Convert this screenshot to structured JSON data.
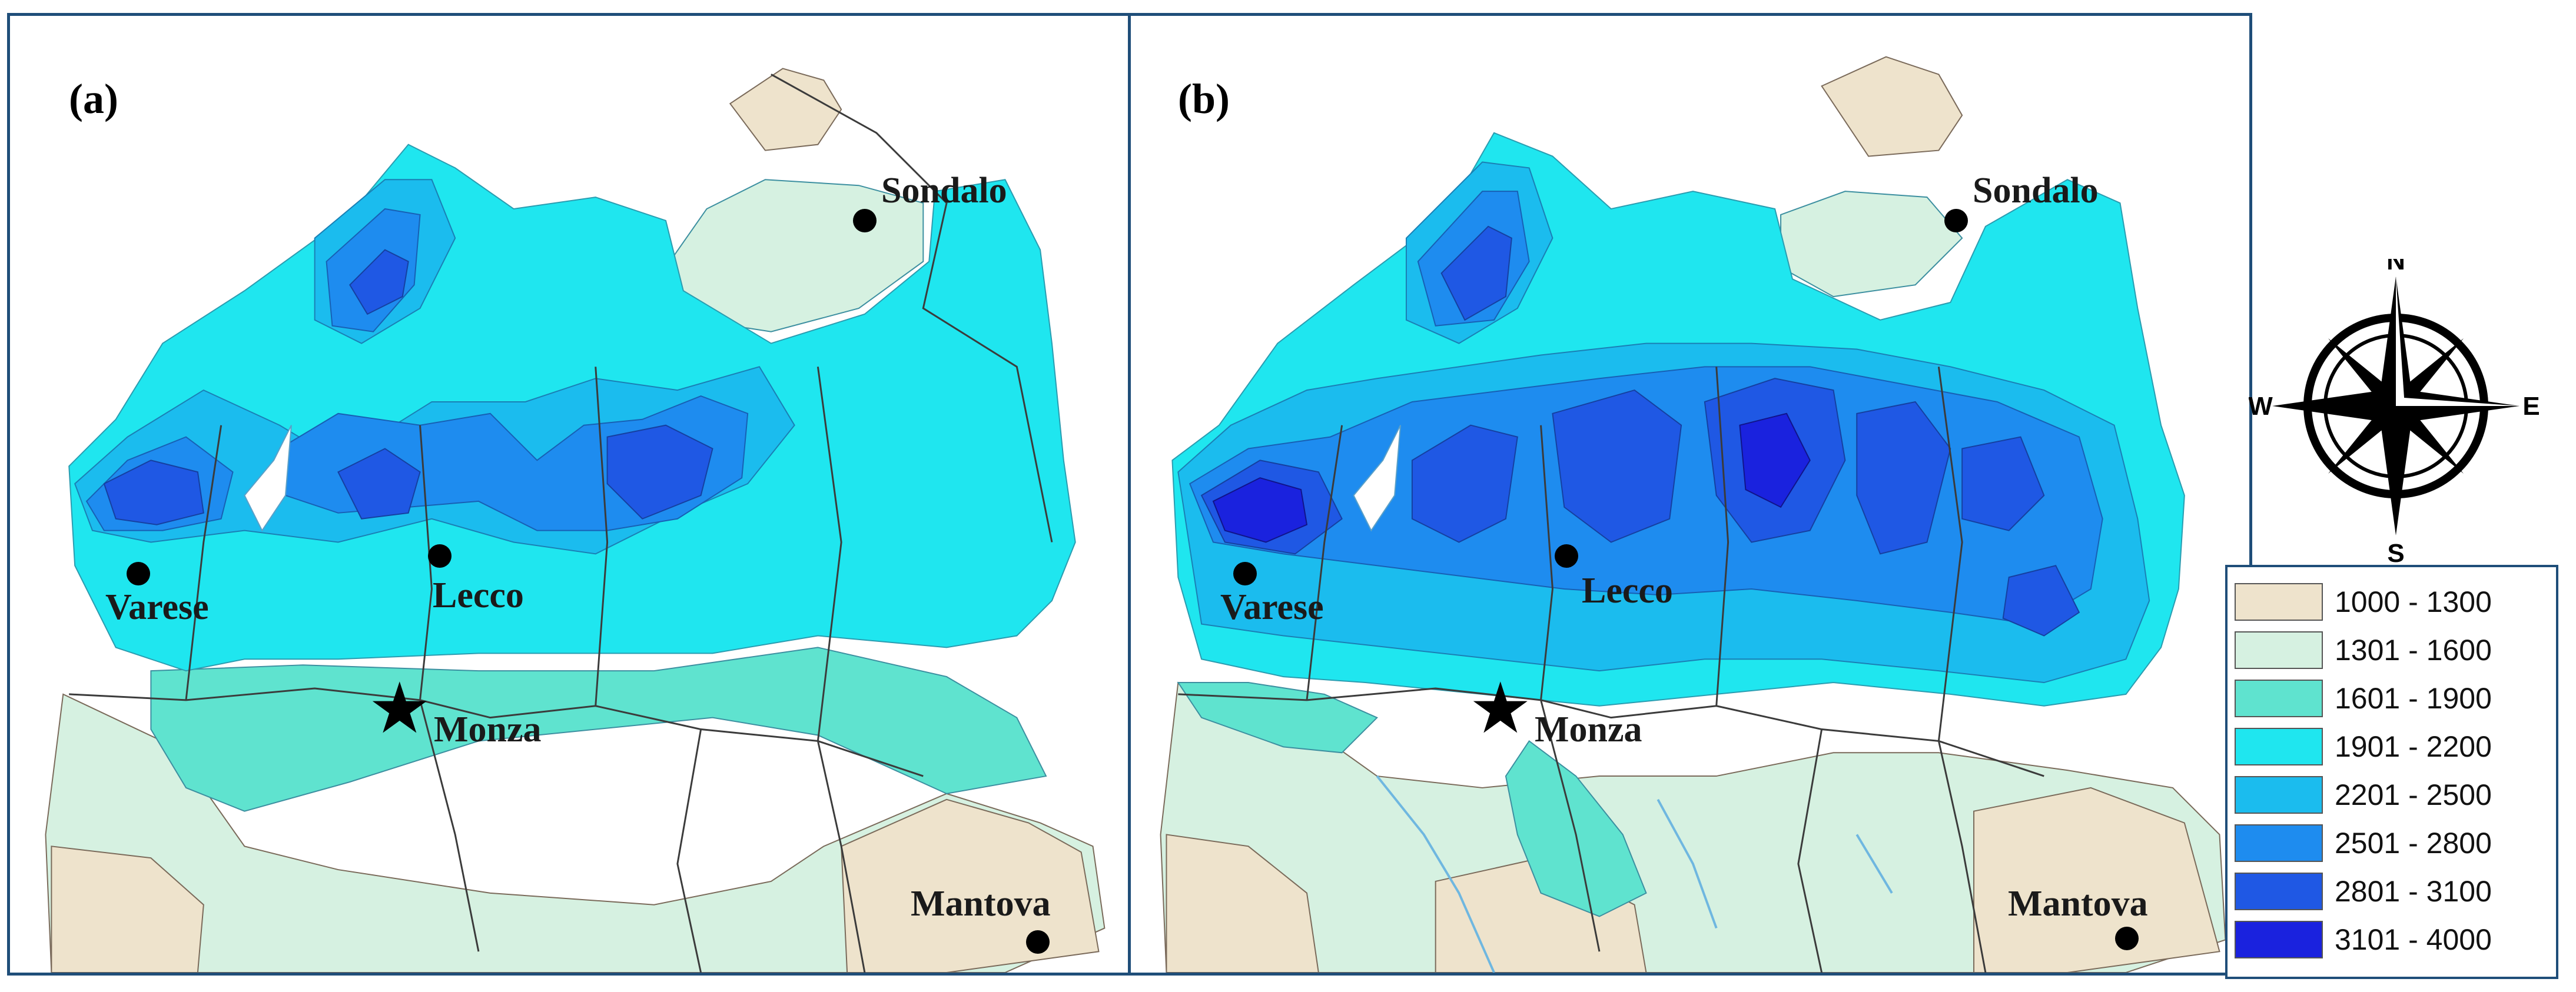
{
  "panels": [
    {
      "label": "(a)"
    },
    {
      "label": "(b)"
    }
  ],
  "cities": {
    "varese": "Varese",
    "lecco": "Lecco",
    "monza": "Monza",
    "sondalo": "Sondalo",
    "mantova": "Mantova"
  },
  "compass": {
    "n": "N",
    "s": "S",
    "e": "E",
    "w": "W"
  },
  "legend": {
    "items": [
      {
        "range": "1000 - 1300",
        "color": "#eee3cc"
      },
      {
        "range": "1301 - 1600",
        "color": "#d6f1e1"
      },
      {
        "range": "1601 - 1900",
        "color": "#5fe3cf"
      },
      {
        "range": "1901 - 2200",
        "color": "#1fe6ef"
      },
      {
        "range": "2201 - 2500",
        "color": "#1bbcee"
      },
      {
        "range": "2501 - 2800",
        "color": "#1e8cef"
      },
      {
        "range": "2801 - 3100",
        "color": "#1f58e4"
      },
      {
        "range": "3101 - 4000",
        "color": "#1a22de"
      }
    ]
  }
}
